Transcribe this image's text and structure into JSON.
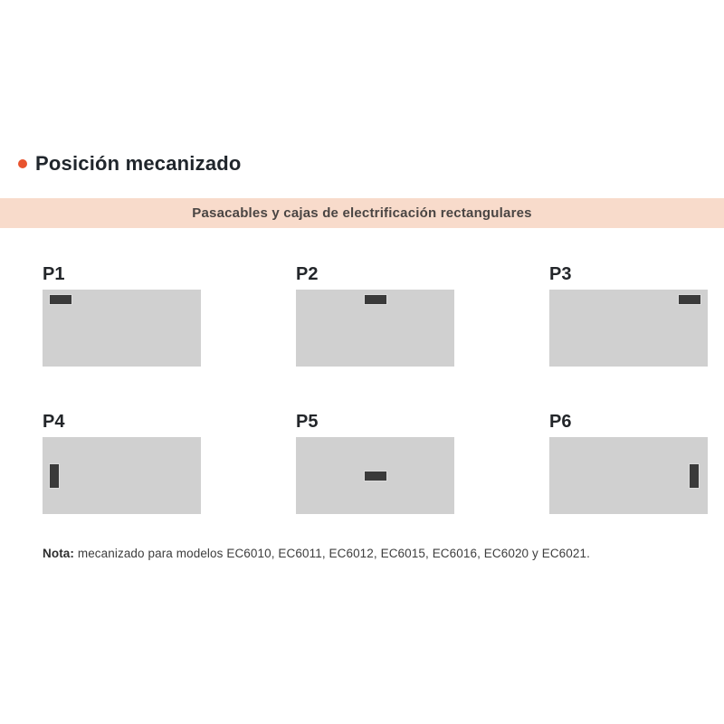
{
  "header": {
    "title": "Posición mecanizado"
  },
  "banner": {
    "label": "Pasacables y cajas de electrificación rectangulares"
  },
  "positions": [
    {
      "label": "P1",
      "marker": "horizontal",
      "placement": "top-left"
    },
    {
      "label": "P2",
      "marker": "horizontal",
      "placement": "top-center"
    },
    {
      "label": "P3",
      "marker": "horizontal",
      "placement": "top-right"
    },
    {
      "label": "P4",
      "marker": "vertical",
      "placement": "middle-left"
    },
    {
      "label": "P5",
      "marker": "horizontal",
      "placement": "middle-center"
    },
    {
      "label": "P6",
      "marker": "vertical",
      "placement": "middle-right"
    }
  ],
  "note": {
    "label": "Nota:",
    "text": " mecanizado para modelos EC6010, EC6011, EC6012, EC6015, EC6016, EC6020 y EC6021."
  },
  "colors": {
    "accent_orange": "#E8532E",
    "banner_background": "#F8DBCB",
    "panel_gray": "#D0D0D0",
    "marker_dark": "#3A3A3A",
    "title_text": "#20262C"
  }
}
